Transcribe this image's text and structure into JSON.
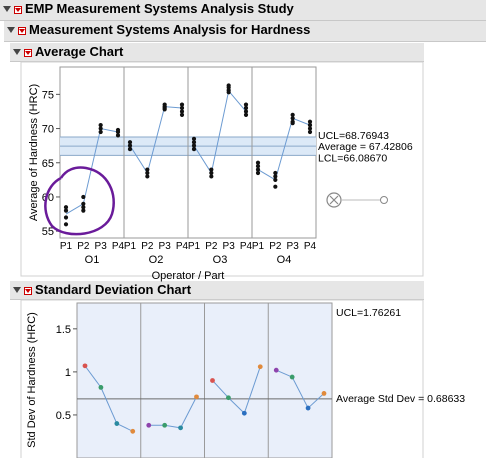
{
  "headers": {
    "study": "EMP Measurement Systems Analysis Study",
    "analysis": "Measurement Systems Analysis for Hardness",
    "average_chart": "Average Chart",
    "std_chart": "Standard Deviation Chart"
  },
  "average_chart": {
    "ylabel": "Average of Hardness (HRC)",
    "xlabel": "Operator / Part",
    "yticks": [
      "55",
      "60",
      "65",
      "70",
      "75"
    ],
    "ucl_label": "UCL=68.76943",
    "avg_label": "Average = 67.42806",
    "lcl_label": "LCL=66.08670",
    "operators": [
      "O1",
      "O2",
      "O3",
      "O4"
    ],
    "parts": [
      "P1",
      "P2",
      "P3",
      "P4"
    ]
  },
  "std_chart": {
    "ylabel": "Std Dev of Hardness (HRC)",
    "yticks": [
      "0.5",
      "1",
      "1.5"
    ],
    "ucl_label": "UCL=1.76261",
    "avg_label": "Average Std Dev = 0.68633"
  },
  "colors": {
    "accent": "#6a1b9a",
    "band": "#dce9f7",
    "line": "#6c9bd2"
  },
  "chart_data": [
    {
      "type": "line",
      "title": "Average Chart",
      "xlabel": "Operator / Part",
      "ylabel": "Average of Hardness (HRC)",
      "ylim": [
        54,
        79
      ],
      "groups": [
        "O1",
        "O2",
        "O3",
        "O4"
      ],
      "categories": [
        "P1",
        "P2",
        "P3",
        "P4"
      ],
      "means": [
        [
          57.5,
          59.0,
          70.0,
          69.5
        ],
        [
          67.5,
          63.5,
          73.2,
          73.0
        ],
        [
          67.5,
          63.5,
          75.5,
          72.5
        ],
        [
          64.0,
          62.5,
          71.5,
          70.5
        ]
      ],
      "points": [
        [
          [
            56,
            57,
            58,
            58.5
          ],
          [
            58,
            58.5,
            59,
            60
          ],
          [
            70.5,
            70,
            69.5
          ],
          [
            69.8,
            69.5,
            69
          ]
        ],
        [
          [
            68,
            67.5,
            67
          ],
          [
            64,
            63.5,
            63
          ],
          [
            73.5,
            73.2,
            73,
            72.8
          ],
          [
            73.5,
            73,
            72.5,
            72
          ]
        ],
        [
          [
            68.5,
            68,
            67.5,
            67
          ],
          [
            64,
            63.5,
            63
          ],
          [
            76.3,
            76,
            75.6,
            75.3
          ],
          [
            73.5,
            73,
            72.5,
            72
          ]
        ],
        [
          [
            65,
            64.5,
            64,
            63.5
          ],
          [
            63.5,
            63,
            62.5,
            61.5
          ],
          [
            72,
            71.5,
            71,
            70.8
          ],
          [
            71,
            70.5,
            70,
            69.5
          ]
        ]
      ],
      "ucl": 68.76943,
      "average": 67.42806,
      "lcl": 66.0867
    },
    {
      "type": "line",
      "title": "Standard Deviation Chart",
      "ylabel": "Std Dev of Hardness (HRC)",
      "ylim": [
        0,
        1.8
      ],
      "groups": [
        "O1",
        "O2",
        "O3",
        "O4"
      ],
      "values": [
        [
          1.07,
          0.82,
          0.4,
          0.31
        ],
        [
          0.38,
          0.38,
          0.35,
          0.71
        ],
        [
          0.9,
          0.7,
          0.52,
          1.06
        ],
        [
          1.02,
          0.94,
          0.58,
          0.75
        ]
      ],
      "point_colors": [
        [
          "#d9534f",
          "#3a9c6b",
          "#2a8aa0",
          "#e08a3c"
        ],
        [
          "#8e44ad",
          "#3a9c6b",
          "#2a8aa0",
          "#e08a3c"
        ],
        [
          "#d9534f",
          "#3a9c6b",
          "#2a6fc0",
          "#e08a3c"
        ],
        [
          "#8e44ad",
          "#3a9c6b",
          "#2a6fc0",
          "#e08a3c"
        ]
      ],
      "ucl": 1.76261,
      "average": 0.68633
    }
  ]
}
